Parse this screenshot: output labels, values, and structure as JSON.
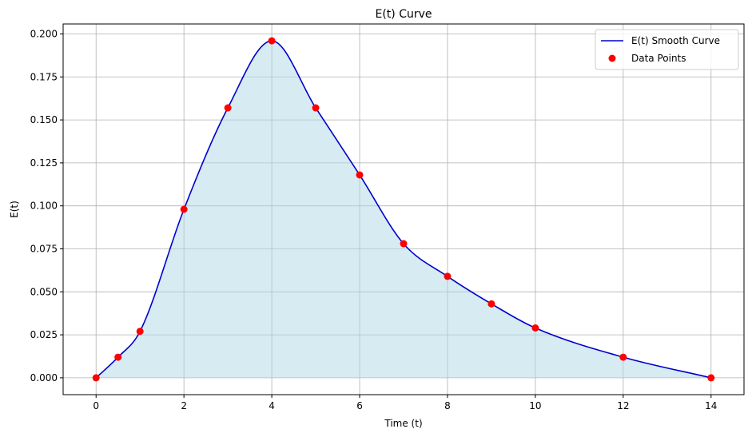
{
  "chart_data": {
    "type": "line",
    "title": "E(t) Curve",
    "xlabel": "Time (t)",
    "ylabel": "E(t)",
    "xlim": [
      -0.75,
      14.75
    ],
    "ylim": [
      -0.0098,
      0.2058
    ],
    "xticks": [
      0,
      2,
      4,
      6,
      8,
      10,
      12,
      14
    ],
    "yticks": [
      0.0,
      0.025,
      0.05,
      0.075,
      0.1,
      0.125,
      0.15,
      0.175,
      0.2
    ],
    "xtick_labels": [
      "0",
      "2",
      "4",
      "6",
      "8",
      "10",
      "12",
      "14"
    ],
    "ytick_labels": [
      "0.000",
      "0.025",
      "0.050",
      "0.075",
      "0.100",
      "0.125",
      "0.150",
      "0.175",
      "0.200"
    ],
    "grid": true,
    "legend_position": "top-right",
    "series": [
      {
        "name": "E(t) Smooth Curve",
        "kind": "line",
        "color": "#0000cc",
        "fill_color": "#add8e6",
        "x": [
          0,
          0.5,
          1,
          2,
          3,
          4,
          5,
          6,
          7,
          8,
          9,
          10,
          12,
          14
        ],
        "y": [
          0,
          0.012,
          0.027,
          0.098,
          0.157,
          0.196,
          0.157,
          0.118,
          0.078,
          0.059,
          0.043,
          0.029,
          0.012,
          0
        ]
      },
      {
        "name": "Data Points",
        "kind": "scatter",
        "color": "#ff0000",
        "x": [
          0,
          0.5,
          1,
          2,
          3,
          4,
          5,
          6,
          7,
          8,
          9,
          10,
          12,
          14
        ],
        "y": [
          0,
          0.012,
          0.027,
          0.098,
          0.157,
          0.196,
          0.157,
          0.118,
          0.078,
          0.059,
          0.043,
          0.029,
          0.012,
          0
        ]
      }
    ]
  }
}
